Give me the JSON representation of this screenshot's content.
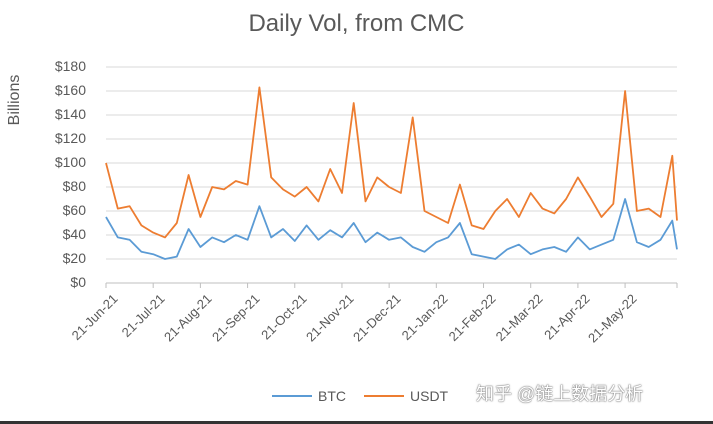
{
  "chart_data": {
    "type": "line",
    "title": "Daily Vol, from CMC",
    "xlabel": "",
    "ylabel": "Billions",
    "ylim": [
      0,
      180
    ],
    "yticks": [
      "$0",
      "$20",
      "$40",
      "$60",
      "$80",
      "$100",
      "$120",
      "$140",
      "$160",
      "$180"
    ],
    "ytick_values": [
      0,
      20,
      40,
      60,
      80,
      100,
      120,
      140,
      160,
      180
    ],
    "xticks": [
      "21-Jun-21",
      "21-Jul-21",
      "21-Aug-21",
      "21-Sep-21",
      "21-Oct-21",
      "21-Nov-21",
      "21-Dec-21",
      "21-Jan-22",
      "21-Feb-22",
      "21-Mar-22",
      "21-Apr-22",
      "21-May-22"
    ],
    "grid": true,
    "legend_position": "bottom",
    "x": [
      0,
      0.25,
      0.5,
      0.75,
      1,
      1.25,
      1.5,
      1.75,
      2,
      2.25,
      2.5,
      2.75,
      3,
      3.25,
      3.5,
      3.75,
      4,
      4.25,
      4.5,
      4.75,
      5,
      5.25,
      5.5,
      5.75,
      6,
      6.25,
      6.5,
      6.75,
      7,
      7.25,
      7.5,
      7.75,
      8,
      8.25,
      8.5,
      8.75,
      9,
      9.25,
      9.5,
      9.75,
      10,
      10.25,
      10.5,
      10.75,
      11,
      11.25,
      11.5,
      11.75,
      12,
      12.1
    ],
    "series": [
      {
        "name": "BTC",
        "color": "#5B9BD5",
        "values": [
          55,
          38,
          36,
          26,
          24,
          20,
          22,
          45,
          30,
          38,
          34,
          40,
          36,
          64,
          38,
          45,
          35,
          48,
          36,
          44,
          38,
          50,
          34,
          42,
          36,
          38,
          30,
          26,
          34,
          38,
          50,
          24,
          22,
          20,
          28,
          32,
          24,
          28,
          30,
          26,
          38,
          28,
          32,
          36,
          70,
          34,
          30,
          36,
          52,
          28
        ]
      },
      {
        "name": "USDT",
        "color": "#ED7D31",
        "values": [
          100,
          62,
          64,
          48,
          42,
          38,
          50,
          90,
          55,
          80,
          78,
          85,
          82,
          163,
          88,
          78,
          72,
          80,
          68,
          95,
          75,
          150,
          68,
          88,
          80,
          75,
          138,
          60,
          55,
          50,
          82,
          48,
          45,
          60,
          70,
          55,
          75,
          62,
          58,
          70,
          88,
          72,
          55,
          66,
          160,
          60,
          62,
          55,
          106,
          52
        ]
      }
    ]
  },
  "legend": {
    "items": [
      {
        "label": "BTC",
        "color": "#5B9BD5"
      },
      {
        "label": "USDT",
        "color": "#ED7D31"
      }
    ]
  },
  "watermark": "知乎 @链上数据分析"
}
